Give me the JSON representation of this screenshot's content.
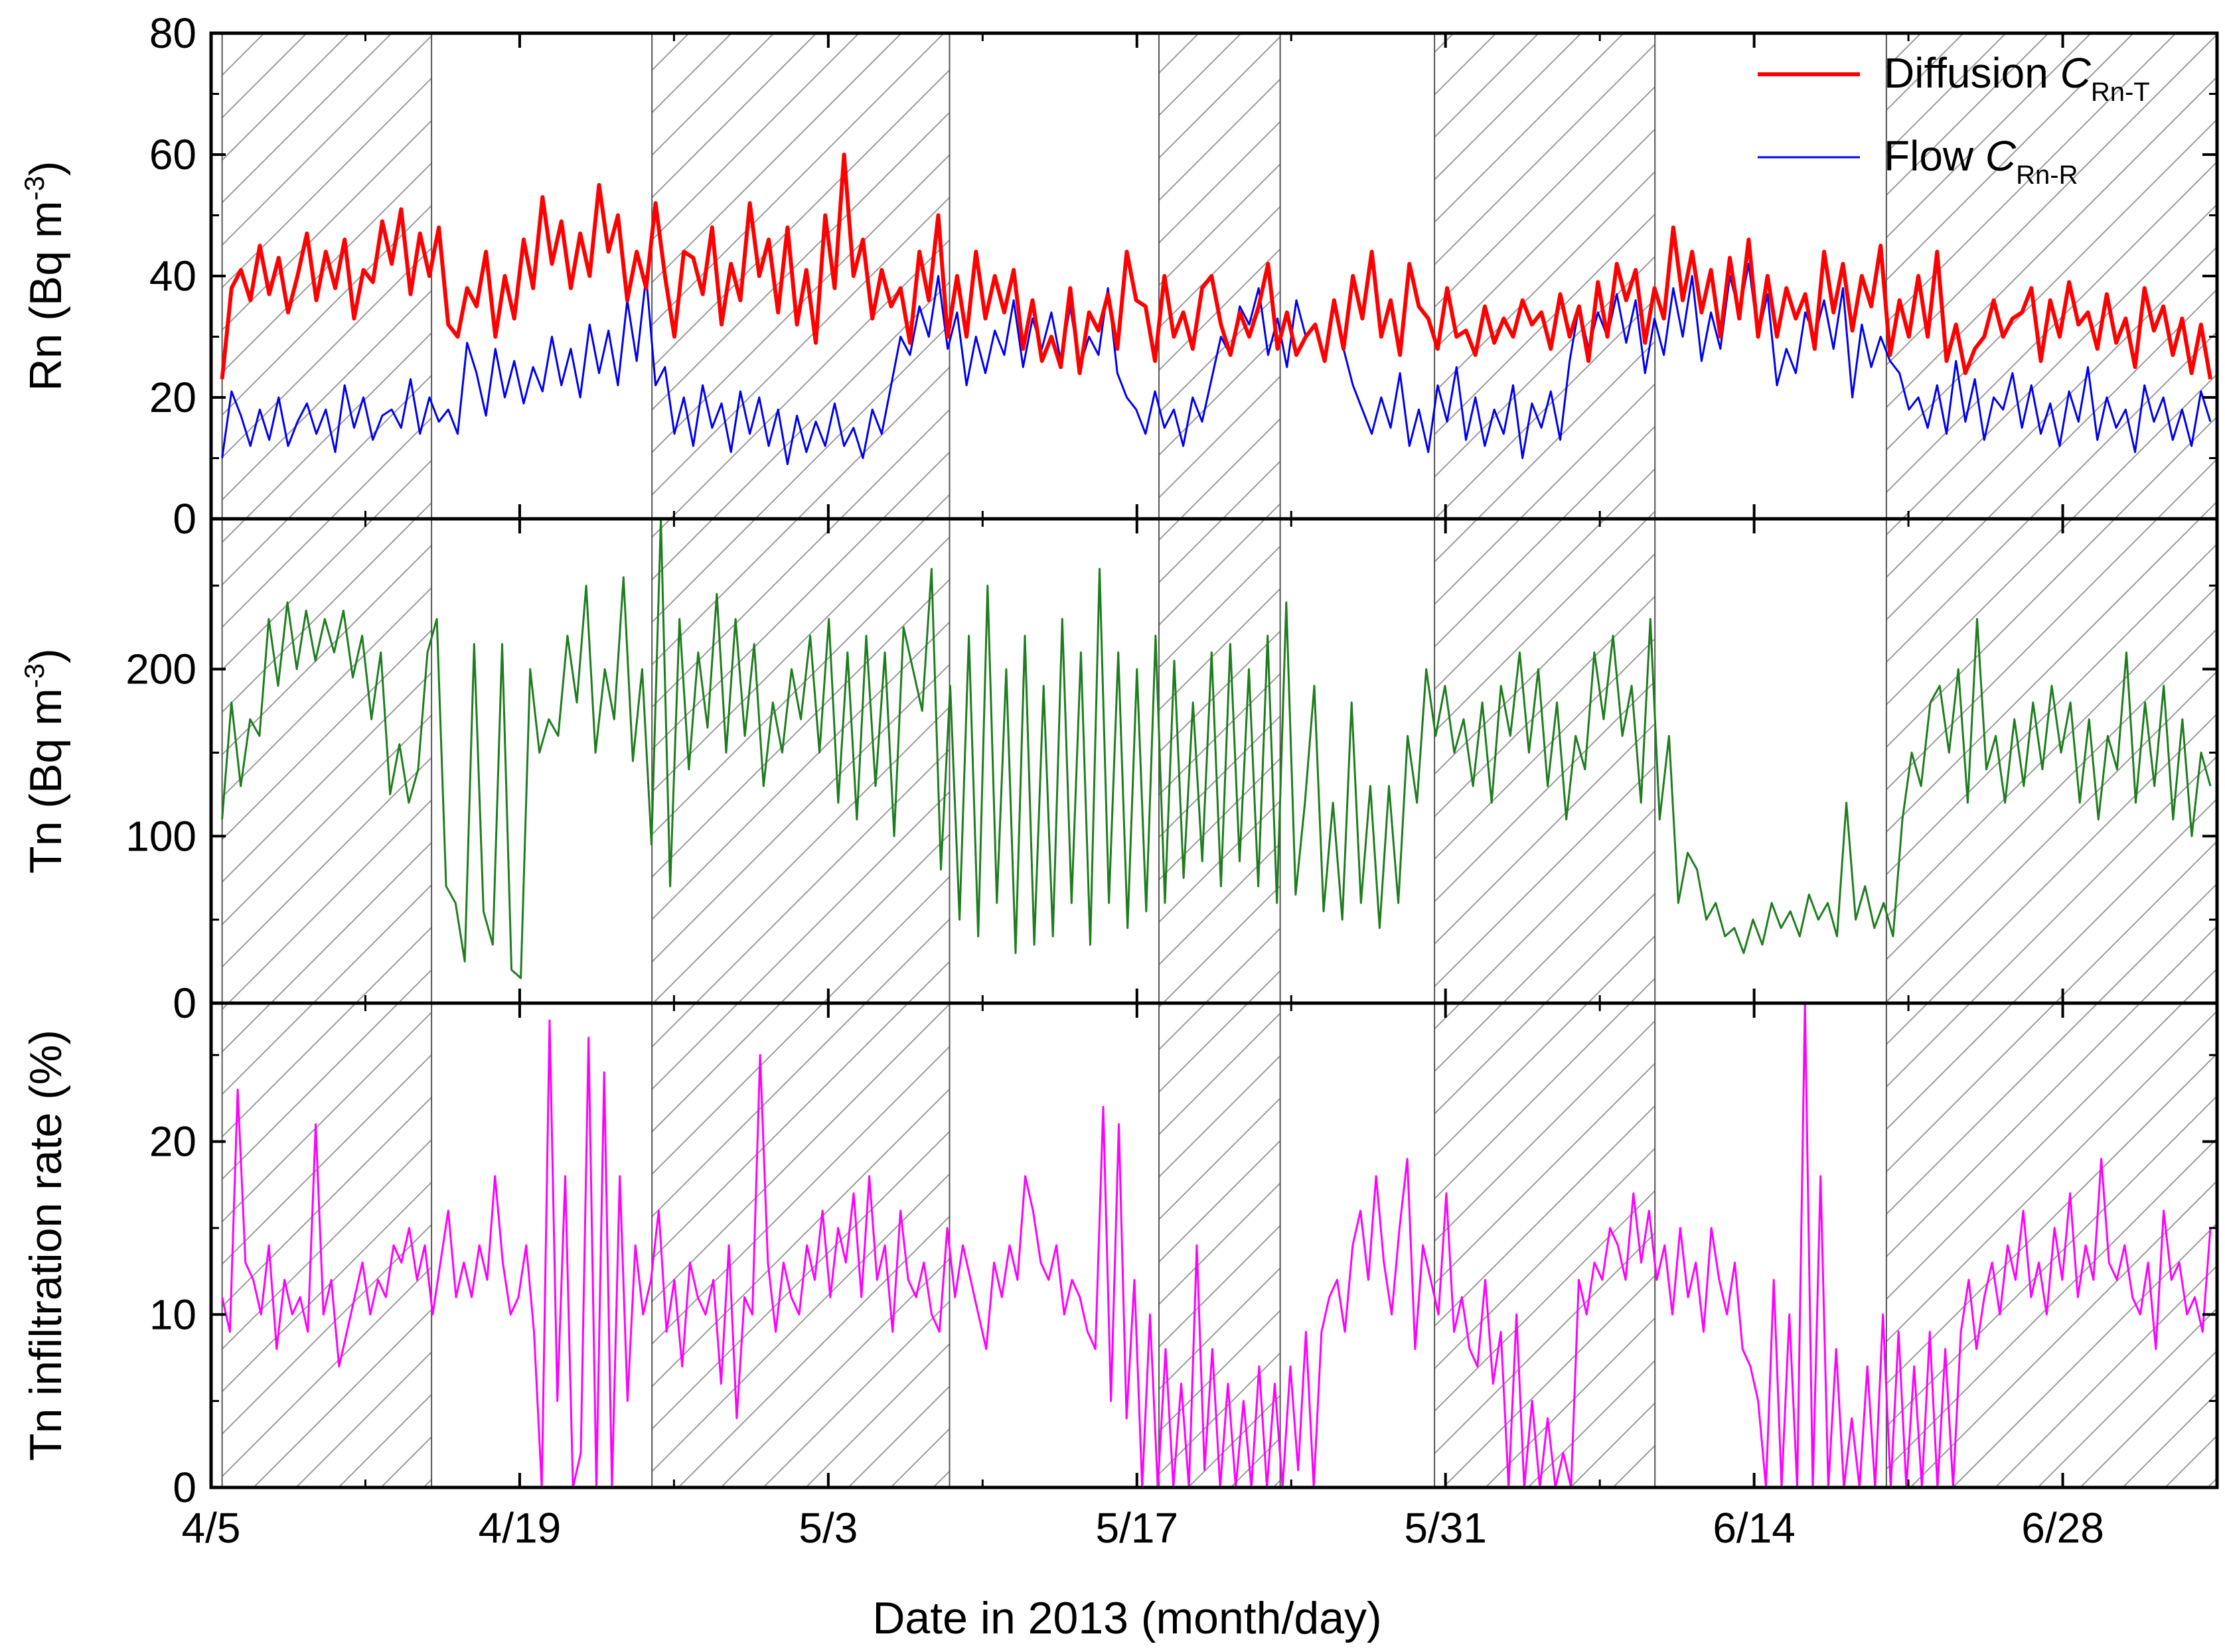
{
  "chart_data": {
    "type": "line",
    "xlabel": "Date in 2013 (month/day)",
    "x_range_days_from_apr5": [
      0,
      91
    ],
    "x_ticks": [
      {
        "day": 0,
        "label": "4/5"
      },
      {
        "day": 14,
        "label": "4/19"
      },
      {
        "day": 28,
        "label": "5/3"
      },
      {
        "day": 42,
        "label": "5/17"
      },
      {
        "day": 56,
        "label": "5/31"
      },
      {
        "day": 70,
        "label": "6/14"
      },
      {
        "day": 84,
        "label": "6/28"
      }
    ],
    "shaded_periods_days": [
      [
        0.5,
        10
      ],
      [
        20,
        33.5
      ],
      [
        43,
        48.5
      ],
      [
        55.5,
        65.5
      ],
      [
        76,
        91
      ]
    ],
    "vertical_lines_days": [
      0.5,
      10,
      20,
      33.5,
      43,
      48.5,
      55.5,
      65.5,
      76
    ],
    "panels": [
      {
        "id": "rn",
        "ylabel": "Rn (Bq m",
        "ylabel_sup": "-3",
        "ylabel_end": ")",
        "ylim": [
          0,
          80
        ],
        "y_ticks": [
          0,
          20,
          40,
          60,
          80
        ],
        "y_tick_labels": [
          "0",
          "20",
          "40",
          "60",
          "80"
        ],
        "series": [
          {
            "name": "Diffusion C_Rn-T",
            "color": "#ff0000",
            "width": 6,
            "z": 2,
            "values": [
              23,
              38,
              41,
              36,
              45,
              37,
              43,
              34,
              40,
              47,
              36,
              44,
              38,
              46,
              33,
              41,
              39,
              49,
              42,
              51,
              37,
              47,
              40,
              48,
              32,
              30,
              38,
              35,
              44,
              30,
              40,
              33,
              46,
              38,
              53,
              42,
              49,
              38,
              47,
              40,
              55,
              44,
              50,
              36,
              44,
              38,
              52,
              40,
              30,
              44,
              43,
              37,
              48,
              32,
              42,
              36,
              52,
              40,
              46,
              34,
              48,
              32,
              41,
              29,
              50,
              38,
              60,
              40,
              46,
              33,
              41,
              35,
              38,
              29,
              44,
              36,
              50,
              30,
              40,
              30,
              44,
              33,
              40,
              34,
              41,
              28,
              36,
              26,
              30,
              25,
              38,
              24,
              34,
              31,
              37,
              28,
              44,
              36,
              35,
              26,
              40,
              30,
              34,
              28,
              38,
              40,
              32,
              27,
              34,
              30,
              35,
              42,
              28,
              34,
              27,
              30,
              32,
              26,
              36,
              28,
              40,
              33,
              44,
              30,
              36,
              27,
              42,
              35,
              33,
              28,
              38,
              30,
              31,
              27,
              35,
              29,
              33,
              30,
              36,
              32,
              34,
              28,
              37,
              30,
              35,
              26,
              39,
              30,
              42,
              36,
              41,
              29,
              38,
              33,
              48,
              36,
              44,
              34,
              41,
              30,
              43,
              33,
              46,
              30,
              40,
              30,
              38,
              33,
              37,
              28,
              44,
              34,
              42,
              31,
              40,
              35,
              45,
              27,
              36,
              30,
              40,
              30,
              44,
              26,
              32,
              24,
              28,
              30,
              36,
              30,
              33,
              34,
              38,
              26,
              36,
              30,
              39,
              32,
              34,
              28,
              37,
              29,
              33,
              25,
              38,
              31,
              35,
              27,
              33,
              24,
              32,
              23
            ]
          },
          {
            "name": "Flow C_Rn-R",
            "color": "#0000ee",
            "width": 3,
            "z": 1,
            "values": [
              10,
              21,
              17,
              12,
              18,
              13,
              20,
              12,
              16,
              19,
              14,
              18,
              11,
              22,
              15,
              20,
              13,
              17,
              18,
              15,
              23,
              14,
              20,
              16,
              18,
              14,
              29,
              24,
              17,
              28,
              20,
              26,
              19,
              25,
              21,
              30,
              22,
              28,
              20,
              32,
              24,
              31,
              22,
              36,
              26,
              40,
              22,
              25,
              14,
              20,
              12,
              22,
              15,
              19,
              11,
              21,
              14,
              20,
              12,
              18,
              9,
              17,
              11,
              16,
              12,
              19,
              12,
              15,
              10,
              18,
              14,
              22,
              30,
              27,
              35,
              30,
              40,
              28,
              34,
              22,
              30,
              24,
              31,
              27,
              36,
              25,
              33,
              28,
              34,
              26,
              35,
              25,
              30,
              27,
              38,
              24,
              20,
              18,
              14,
              21,
              15,
              18,
              12,
              20,
              16,
              23,
              30,
              27,
              35,
              32,
              38,
              27,
              33,
              25,
              36,
              30,
              32,
              26,
              35,
              28,
              22,
              18,
              14,
              20,
              15,
              24,
              12,
              18,
              11,
              22,
              16,
              25,
              13,
              20,
              12,
              18,
              14,
              22,
              10,
              19,
              15,
              21,
              13,
              26,
              35,
              28,
              34,
              30,
              37,
              29,
              36,
              24,
              33,
              27,
              38,
              30,
              40,
              26,
              34,
              28,
              40,
              34,
              42,
              30,
              37,
              22,
              28,
              24,
              34,
              30,
              36,
              28,
              38,
              20,
              32,
              25,
              30,
              26,
              24,
              18,
              20,
              15,
              22,
              14,
              26,
              16,
              23,
              13,
              20,
              18,
              24,
              15,
              22,
              14,
              19,
              12,
              21,
              16,
              25,
              13,
              20,
              15,
              18,
              11,
              22,
              16,
              20,
              13,
              18,
              12,
              21,
              16
            ]
          }
        ]
      },
      {
        "id": "tn",
        "ylabel": "Tn (Bq m",
        "ylabel_sup": "-3",
        "ylabel_end": ")",
        "ylim": [
          0,
          290
        ],
        "y_ticks": [
          0,
          100,
          200
        ],
        "y_tick_labels": [
          "0",
          "100",
          "200"
        ],
        "series": [
          {
            "name": "Tn",
            "color": "#1e7d1e",
            "width": 3,
            "z": 1,
            "values": [
              110,
              180,
              130,
              170,
              160,
              230,
              190,
              240,
              200,
              235,
              205,
              230,
              210,
              235,
              195,
              220,
              170,
              210,
              125,
              155,
              120,
              140,
              210,
              230,
              70,
              60,
              25,
              215,
              55,
              35,
              215,
              20,
              15,
              200,
              150,
              170,
              160,
              220,
              180,
              250,
              150,
              200,
              170,
              255,
              145,
              200,
              95,
              290,
              70,
              230,
              140,
              210,
              165,
              245,
              150,
              230,
              160,
              215,
              130,
              180,
              150,
              200,
              170,
              220,
              150,
              230,
              120,
              210,
              110,
              220,
              130,
              210,
              100,
              225,
              200,
              175,
              260,
              80,
              190,
              50,
              220,
              40,
              250,
              60,
              200,
              30,
              220,
              35,
              190,
              40,
              230,
              60,
              210,
              35,
              260,
              60,
              210,
              45,
              200,
              55,
              220,
              60,
              205,
              75,
              180,
              85,
              210,
              70,
              215,
              85,
              200,
              70,
              220,
              60,
              240,
              65,
              120,
              190,
              55,
              120,
              50,
              180,
              60,
              130,
              45,
              130,
              60,
              160,
              120,
              200,
              160,
              190,
              150,
              170,
              130,
              180,
              120,
              190,
              160,
              210,
              150,
              200,
              130,
              180,
              110,
              160,
              140,
              210,
              170,
              220,
              160,
              190,
              120,
              230,
              110,
              160,
              60,
              90,
              80,
              50,
              60,
              40,
              45,
              30,
              50,
              35,
              60,
              45,
              55,
              40,
              65,
              50,
              60,
              40,
              120,
              50,
              70,
              45,
              60,
              40,
              110,
              150,
              130,
              180,
              190,
              150,
              200,
              120,
              230,
              140,
              160,
              120,
              170,
              130,
              180,
              140,
              190,
              150,
              180,
              120,
              170,
              110,
              160,
              140,
              210,
              120,
              180,
              130,
              190,
              110,
              170,
              100,
              150,
              130
            ]
          }
        ]
      },
      {
        "id": "inf",
        "ylabel": "Tn infiltration rate (%)",
        "ylim": [
          0,
          28
        ],
        "y_ticks": [
          0,
          10,
          20
        ],
        "y_tick_labels": [
          "0",
          "10",
          "20"
        ],
        "series": [
          {
            "name": "Tn infiltration rate",
            "color": "#ff00ff",
            "width": 3,
            "z": 1,
            "values": [
              11,
              9,
              23,
              13,
              12,
              10,
              14,
              8,
              12,
              10,
              11,
              9,
              21,
              10,
              12,
              7,
              9,
              11,
              13,
              10,
              12,
              11,
              14,
              13,
              15,
              12,
              14,
              10,
              13,
              16,
              11,
              13,
              11,
              14,
              12,
              18,
              13,
              10,
              11,
              14,
              9,
              0,
              27,
              5,
              18,
              0,
              2,
              26,
              0,
              24,
              0,
              18,
              5,
              14,
              10,
              12,
              16,
              9,
              12,
              7,
              13,
              11,
              10,
              12,
              6,
              14,
              4,
              11,
              10,
              25,
              13,
              9,
              13,
              11,
              10,
              14,
              12,
              16,
              11,
              15,
              13,
              17,
              11,
              18,
              12,
              14,
              9,
              16,
              12,
              11,
              13,
              10,
              9,
              15,
              11,
              14,
              12,
              10,
              8,
              13,
              11,
              14,
              12,
              18,
              16,
              13,
              12,
              14,
              10,
              12,
              11,
              9,
              8,
              22,
              5,
              21,
              4,
              12,
              0,
              10,
              0,
              8,
              0,
              6,
              0,
              14,
              1,
              8,
              0,
              6,
              0,
              5,
              0,
              7,
              0,
              6,
              0,
              7,
              1,
              9,
              0,
              9,
              11,
              12,
              9,
              14,
              16,
              12,
              18,
              13,
              10,
              15,
              19,
              8,
              14,
              12,
              10,
              17,
              9,
              11,
              8,
              7,
              12,
              6,
              9,
              0,
              10,
              0,
              5,
              0,
              4,
              0,
              2,
              0,
              12,
              10,
              13,
              12,
              15,
              14,
              12,
              17,
              13,
              16,
              12,
              14,
              10,
              15,
              11,
              13,
              9,
              15,
              12,
              10,
              13,
              8,
              7,
              5,
              0,
              12,
              0,
              10,
              0,
              28,
              0,
              18,
              0,
              8,
              0,
              4,
              0,
              7,
              0,
              10,
              0,
              9,
              0,
              7,
              0,
              9,
              0,
              8,
              0,
              9,
              12,
              8,
              11,
              13,
              10,
              14,
              12,
              16,
              11,
              13,
              10,
              15,
              12,
              17,
              11,
              14,
              12,
              19,
              13,
              12,
              14,
              11,
              10,
              13,
              8,
              16,
              12,
              13,
              10,
              11,
              9,
              15
            ]
          }
        ]
      }
    ],
    "legend": {
      "placement": "top-right",
      "entries": [
        {
          "label": "Diffusion ",
          "italic": "C",
          "sub": "Rn-T",
          "color": "#ff0000"
        },
        {
          "label": "Flow ",
          "italic": "C",
          "sub": "Rn-R",
          "color": "#0000ee"
        }
      ]
    }
  }
}
